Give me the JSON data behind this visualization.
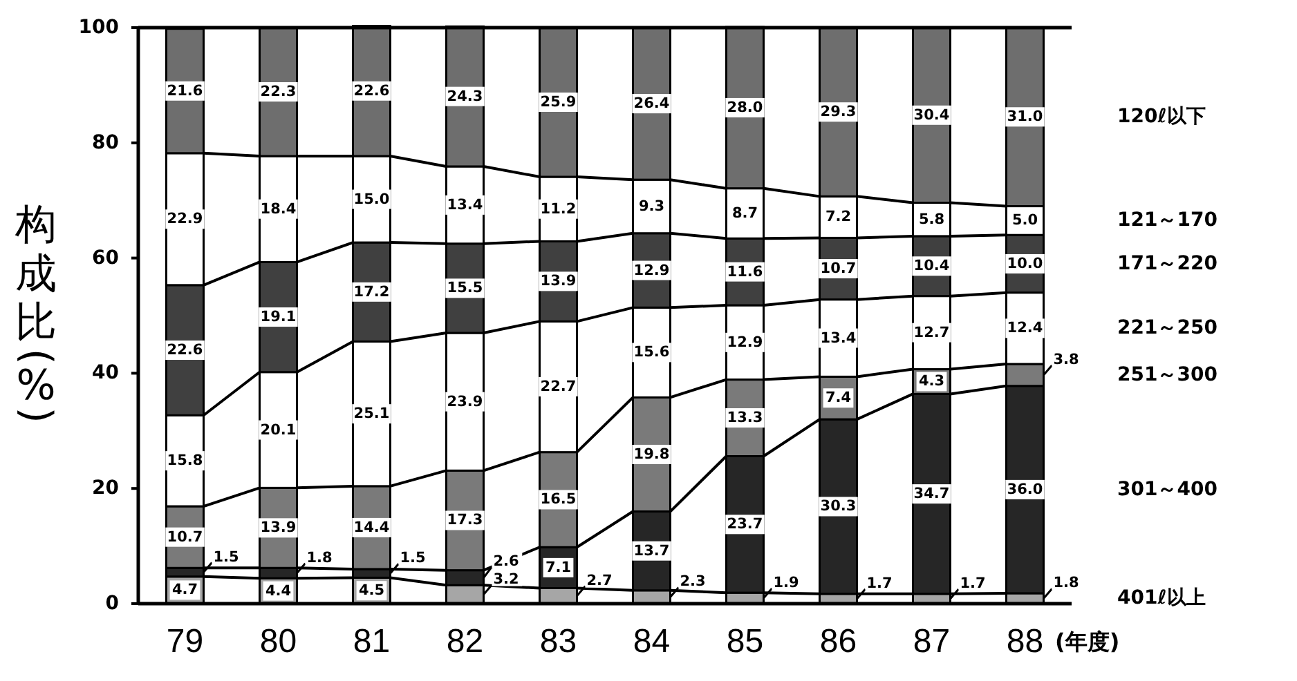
{
  "chart_data": {
    "type": "bar",
    "stacked": true,
    "categories": [
      "79",
      "80",
      "81",
      "82",
      "83",
      "84",
      "85",
      "86",
      "87",
      "88"
    ],
    "xlabel": "(年度)",
    "ylabel": "构成比(%)",
    "ylim": [
      0,
      100
    ],
    "yticks": [
      0,
      20,
      40,
      60,
      80,
      100
    ],
    "legend": "right",
    "series": [
      {
        "name": "401ℓ以上",
        "color": "#a6a6a6",
        "values": [
          4.7,
          4.4,
          4.5,
          3.2,
          2.7,
          2.3,
          1.9,
          1.7,
          1.7,
          1.8
        ],
        "value_labels": [
          "4.7",
          "4.4",
          "4.5",
          "3.2",
          "2.7",
          "2.3",
          "1.9",
          "1.7",
          "1.7",
          "1.8"
        ]
      },
      {
        "name": "301～400",
        "color": "#262626",
        "values": [
          1.5,
          1.8,
          1.5,
          2.6,
          7.1,
          13.7,
          23.7,
          30.3,
          34.7,
          36.0
        ],
        "value_labels": [
          "1.5",
          "1.8",
          "1.5",
          "2.6",
          "7.1",
          "13.7",
          "23.7",
          "30.3",
          "34.7",
          "36.0"
        ]
      },
      {
        "name": "251～300",
        "color": "#7a7a7a",
        "values": [
          10.7,
          13.9,
          14.4,
          17.3,
          16.5,
          19.8,
          13.3,
          7.4,
          4.3,
          3.8
        ],
        "value_labels": [
          "10.7",
          "13.9",
          "14.4",
          "17.3",
          "16.5",
          "19.8",
          "13.3",
          "7.4",
          "4.3",
          "3.8"
        ]
      },
      {
        "name": "221～250",
        "color": "#ffffff",
        "values": [
          15.8,
          20.1,
          25.1,
          23.9,
          22.7,
          15.6,
          12.9,
          13.4,
          12.7,
          12.4
        ],
        "value_labels": [
          "15.8",
          "20.1",
          "25.1",
          "23.9",
          "22.7",
          "15.6",
          "12.9",
          "13.4",
          "12.7",
          "12.4"
        ]
      },
      {
        "name": "171～220",
        "color": "#404040",
        "values": [
          22.6,
          19.1,
          17.2,
          15.5,
          13.9,
          12.9,
          11.6,
          10.7,
          10.4,
          10.0
        ],
        "value_labels": [
          "22.6",
          "19.1",
          "17.2",
          "15.5",
          "13.9",
          "12.9",
          "11.6",
          "10.7",
          "10.4",
          "10.0"
        ]
      },
      {
        "name": "121～170",
        "color": "#ffffff",
        "values": [
          22.9,
          18.4,
          15.0,
          13.4,
          11.2,
          9.3,
          8.7,
          7.2,
          5.8,
          5.0
        ],
        "value_labels": [
          "22.9",
          "18.4",
          "15.0",
          "13.4",
          "11.2",
          "9.3",
          "8.7",
          "7.2",
          "5.8",
          "5.0"
        ]
      },
      {
        "name": "120ℓ以下",
        "color": "#6e6e6e",
        "values": [
          21.6,
          22.3,
          22.6,
          24.3,
          25.9,
          26.4,
          28.0,
          29.3,
          30.4,
          31.0
        ],
        "value_labels": [
          "21.6",
          "22.3",
          "22.6",
          "24.3",
          "25.9",
          "26.4",
          "28.0",
          "29.3",
          "30.4",
          "31.0"
        ]
      }
    ]
  }
}
